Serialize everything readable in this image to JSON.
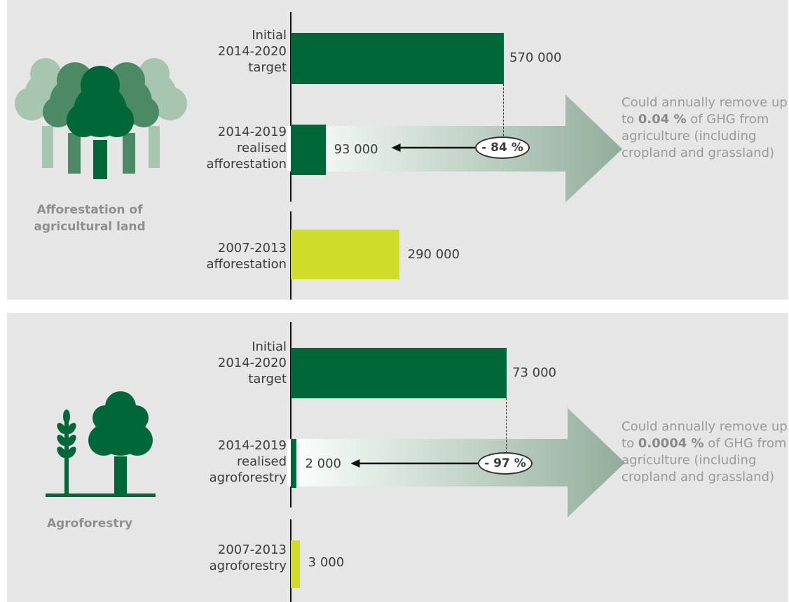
{
  "colors": {
    "target": "#006838",
    "realised": "#006838",
    "previous": "#cfdc29",
    "background": "#e6e6e6",
    "arrow": "#92ad9c"
  },
  "icons": {
    "top": "forest-icon",
    "bottom": "wheat-and-tree-icon"
  },
  "chart_data": [
    {
      "type": "bar",
      "title": "Afforestation of agricultural land",
      "categories": [
        "Initial 2014-2020 target",
        "2014-2019 realised afforestation",
        "2007-2013 afforestation"
      ],
      "category_lines": [
        [
          "Initial",
          "2014-2020",
          "target"
        ],
        [
          "2014-2019",
          "realised",
          "afforestation"
        ],
        [
          "2007-2013",
          "afforestation"
        ]
      ],
      "values": [
        570000,
        93000,
        290000
      ],
      "value_labels": [
        "570 000",
        "93 000",
        "290 000"
      ],
      "change_label": "- 84 %",
      "note": {
        "before": "Could annually remove up to ",
        "highlight": "0.04 %",
        "after": " of GHG from agriculture (including cropland and grassland)"
      }
    },
    {
      "type": "bar",
      "title": "Agroforestry",
      "categories": [
        "Initial 2014-2020 target",
        "2014-2019 realised agroforestry",
        "2007-2013 agroforestry"
      ],
      "category_lines": [
        [
          "Initial",
          "2014-2020",
          "target"
        ],
        [
          "2014-2019",
          "realised",
          "agroforestry"
        ],
        [
          "2007-2013",
          "agroforestry"
        ]
      ],
      "values": [
        73000,
        2000,
        3000
      ],
      "value_labels": [
        "73 000",
        "2 000",
        "3 000"
      ],
      "change_label": "- 97 %",
      "note": {
        "before": "Could annually remove up to ",
        "highlight": "0.0004 %",
        "after": " of GHG from agriculture (including cropland and grassland)"
      }
    }
  ]
}
